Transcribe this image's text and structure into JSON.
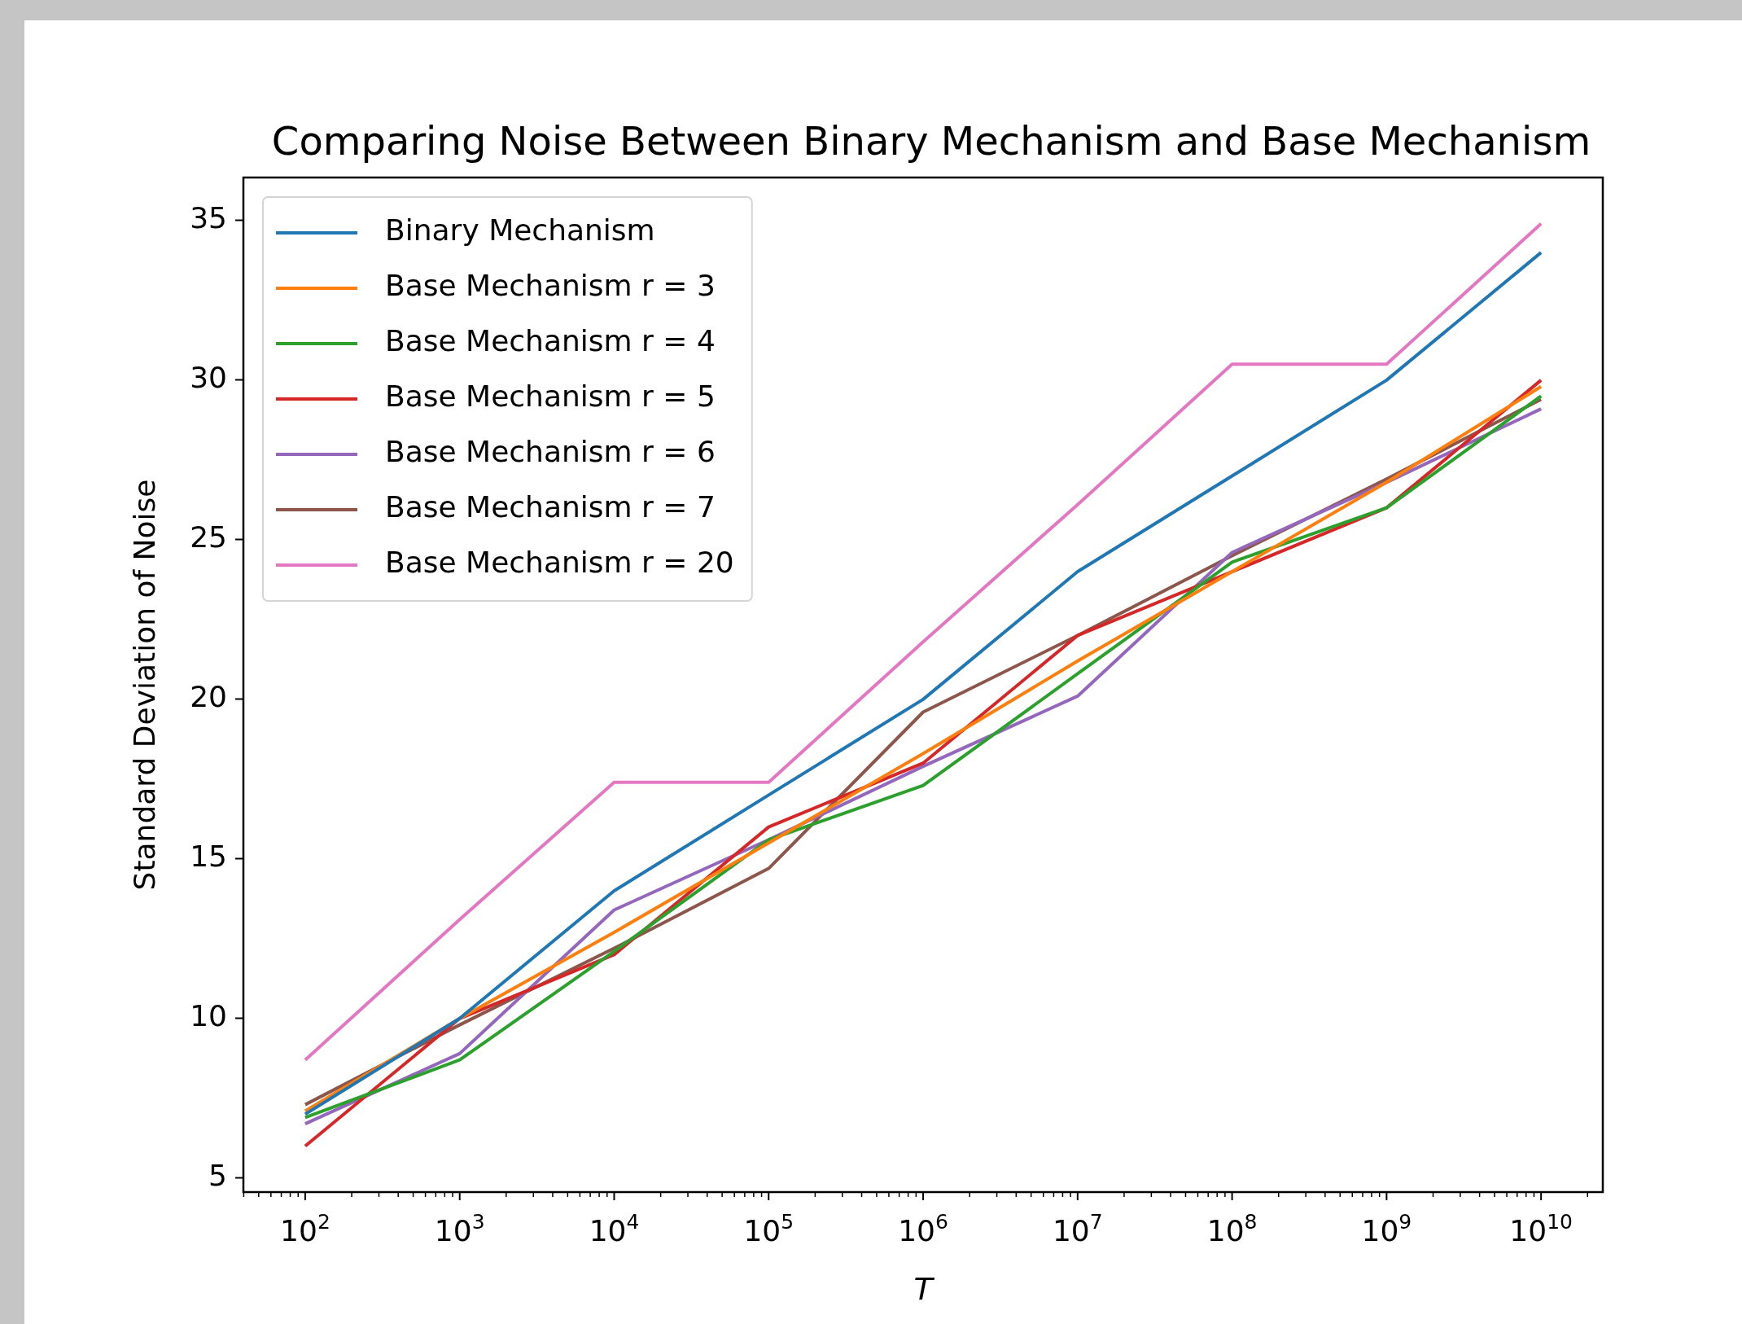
{
  "chart_data": {
    "type": "line",
    "title": "Comparing Noise Between Binary Mechanism and Base Mechanism",
    "xlabel": "T",
    "ylabel": "Standard Deviation of Noise",
    "log": "x",
    "legend": "top left",
    "x": [
      100,
      1000,
      10000,
      100000,
      1000000,
      10000000,
      100000000,
      1000000000,
      10000000000
    ],
    "xlim": [
      39.8,
      25100000000
    ],
    "ylim": [
      4.56,
      36.35
    ],
    "yticks": [
      5,
      10,
      15,
      20,
      25,
      30,
      35
    ],
    "xticks": [
      {
        "value": 40,
        "label": null
      },
      {
        "value": 50,
        "label": null
      },
      {
        "value": 60,
        "label": null
      },
      {
        "value": 70,
        "label": null
      },
      {
        "value": 80,
        "label": null
      },
      {
        "value": 90,
        "label": null
      },
      {
        "value": 100,
        "label": "10$^{2}$"
      },
      {
        "value": 200,
        "label": null
      },
      {
        "value": 300,
        "label": null
      },
      {
        "value": 400,
        "label": null
      },
      {
        "value": 500,
        "label": null
      },
      {
        "value": 600,
        "label": null
      },
      {
        "value": 700,
        "label": null
      },
      {
        "value": 800,
        "label": null
      },
      {
        "value": 900,
        "label": null
      },
      {
        "value": 1000,
        "label": "10$^{3}$"
      },
      {
        "value": 2000,
        "label": null
      },
      {
        "value": 3000,
        "label": null
      },
      {
        "value": 4000,
        "label": null
      },
      {
        "value": 5000,
        "label": null
      },
      {
        "value": 6000,
        "label": null
      },
      {
        "value": 7000,
        "label": null
      },
      {
        "value": 8000,
        "label": null
      },
      {
        "value": 9000,
        "label": null
      },
      {
        "value": 10000,
        "label": "10$^{4}$"
      },
      {
        "value": 20000,
        "label": null
      },
      {
        "value": 30000,
        "label": null
      },
      {
        "value": 40000,
        "label": null
      },
      {
        "value": 50000,
        "label": null
      },
      {
        "value": 60000,
        "label": null
      },
      {
        "value": 70000,
        "label": null
      },
      {
        "value": 80000,
        "label": null
      },
      {
        "value": 90000,
        "label": null
      },
      {
        "value": 100000,
        "label": "10$^{5}$"
      },
      {
        "value": 200000,
        "label": null
      },
      {
        "value": 300000,
        "label": null
      },
      {
        "value": 400000,
        "label": null
      },
      {
        "value": 500000,
        "label": null
      },
      {
        "value": 600000,
        "label": null
      },
      {
        "value": 700000,
        "label": null
      },
      {
        "value": 800000,
        "label": null
      },
      {
        "value": 900000,
        "label": null
      },
      {
        "value": 1000000,
        "label": "10$^{6}$"
      },
      {
        "value": 2000000,
        "label": null
      },
      {
        "value": 3000000,
        "label": null
      },
      {
        "value": 4000000,
        "label": null
      },
      {
        "value": 5000000,
        "label": null
      },
      {
        "value": 6000000,
        "label": null
      },
      {
        "value": 7000000,
        "label": null
      },
      {
        "value": 8000000,
        "label": null
      },
      {
        "value": 9000000,
        "label": null
      },
      {
        "value": 10000000,
        "label": "10$^{7}$"
      },
      {
        "value": 20000000,
        "label": null
      },
      {
        "value": 30000000,
        "label": null
      },
      {
        "value": 40000000,
        "label": null
      },
      {
        "value": 50000000,
        "label": null
      },
      {
        "value": 60000000,
        "label": null
      },
      {
        "value": 70000000,
        "label": null
      },
      {
        "value": 80000000,
        "label": null
      },
      {
        "value": 90000000,
        "label": null
      },
      {
        "value": 100000000,
        "label": "10$^{8}$"
      },
      {
        "value": 200000000,
        "label": null
      },
      {
        "value": 300000000,
        "label": null
      },
      {
        "value": 400000000,
        "label": null
      },
      {
        "value": 500000000,
        "label": null
      },
      {
        "value": 600000000,
        "label": null
      },
      {
        "value": 700000000,
        "label": null
      },
      {
        "value": 800000000,
        "label": null
      },
      {
        "value": 900000000,
        "label": null
      },
      {
        "value": 1000000000,
        "label": "10$^{9}$"
      },
      {
        "value": 2000000000,
        "label": null
      },
      {
        "value": 3000000000,
        "label": null
      },
      {
        "value": 4000000000,
        "label": null
      },
      {
        "value": 5000000000,
        "label": null
      },
      {
        "value": 6000000000,
        "label": null
      },
      {
        "value": 7000000000,
        "label": null
      },
      {
        "value": 8000000000,
        "label": null
      },
      {
        "value": 9000000000,
        "label": null
      },
      {
        "value": 10000000000,
        "label": "10$^{10}$"
      },
      {
        "value": 20000000000,
        "label": null
      }
    ],
    "series": [
      {
        "name": "Binary Mechanism",
        "color": "#1f77b4",
        "values": [
          7.0,
          10,
          14,
          17,
          20,
          24,
          27,
          30,
          34
        ]
      },
      {
        "name": "Base Mechanism r = 3",
        "color": "#ff7f0e",
        "values": [
          7.1,
          10,
          12.7,
          15.5,
          18.3,
          21.2,
          24,
          26.8,
          29.8
        ]
      },
      {
        "name": "Base Mechanism r = 4",
        "color": "#2ca02c",
        "values": [
          6.9,
          8.7,
          12.1,
          15.6,
          17.3,
          20.8,
          24.3,
          26,
          29.5
        ]
      },
      {
        "name": "Base Mechanism r = 5",
        "color": "#d62728",
        "values": [
          6,
          10,
          12,
          16,
          18,
          22,
          24,
          26,
          30
        ]
      },
      {
        "name": "Base Mechanism r = 6",
        "color": "#9467bd",
        "values": [
          6.7,
          8.9,
          13.4,
          15.6,
          17.9,
          20.1,
          24.6,
          26.8,
          29.1
        ]
      },
      {
        "name": "Base Mechanism r = 7",
        "color": "#8c564b",
        "values": [
          7.3,
          9.8,
          12.2,
          14.7,
          19.6,
          22,
          24.5,
          26.9,
          29.4
        ]
      },
      {
        "name": "Base Mechanism r = 20",
        "color": "#e377c2",
        "values": [
          8.7,
          13.1,
          17.4,
          17.4,
          21.8,
          26.1,
          30.5,
          30.5,
          34.9
        ]
      }
    ]
  }
}
